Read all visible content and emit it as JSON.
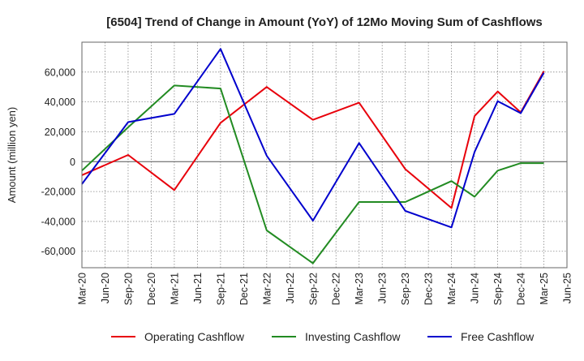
{
  "chart_data": {
    "type": "line",
    "title": "[6504]  Trend of Change in Amount (YoY) of 12Mo Moving Sum of Cashflows",
    "xlabel": "",
    "ylabel": "Amount (million yen)",
    "ylim": [
      -71000,
      80000
    ],
    "yticks": [
      60000,
      40000,
      20000,
      0,
      -20000,
      -40000,
      -60000
    ],
    "ytick_labels": [
      "60,000",
      "40,000",
      "20,000",
      "0",
      "-20,000",
      "-40,000",
      "-60,000"
    ],
    "categories": [
      "Mar-20",
      "Jun-20",
      "Sep-20",
      "Dec-20",
      "Mar-21",
      "Jun-21",
      "Sep-21",
      "Dec-21",
      "Mar-22",
      "Jun-22",
      "Sep-22",
      "Dec-22",
      "Mar-23",
      "Jun-23",
      "Sep-23",
      "Dec-23",
      "Mar-24",
      "Jun-24",
      "Sep-24",
      "Dec-24",
      "Mar-25",
      "Jun-25"
    ],
    "grid": true,
    "legend_position": "bottom",
    "series": [
      {
        "name": "Operating Cashflow",
        "color": "#e8000b",
        "points": [
          {
            "x": "Mar-20",
            "y": -9000
          },
          {
            "x": "Sep-20",
            "y": 4500
          },
          {
            "x": "Mar-21",
            "y": -19000
          },
          {
            "x": "Sep-21",
            "y": 26000
          },
          {
            "x": "Mar-22",
            "y": 50000
          },
          {
            "x": "Sep-22",
            "y": 28000
          },
          {
            "x": "Mar-23",
            "y": 39500
          },
          {
            "x": "Sep-23",
            "y": -5000
          },
          {
            "x": "Mar-24",
            "y": -31000
          },
          {
            "x": "Jun-24",
            "y": 30500
          },
          {
            "x": "Sep-24",
            "y": 47000
          },
          {
            "x": "Dec-24",
            "y": 33000
          },
          {
            "x": "Mar-25",
            "y": 60500
          }
        ]
      },
      {
        "name": "Investing Cashflow",
        "color": "#228b22",
        "points": [
          {
            "x": "Mar-20",
            "y": -6000
          },
          {
            "x": "Sep-20",
            "y": 23000
          },
          {
            "x": "Mar-21",
            "y": 51000
          },
          {
            "x": "Sep-21",
            "y": 49000
          },
          {
            "x": "Mar-22",
            "y": -46000
          },
          {
            "x": "Sep-22",
            "y": -68000
          },
          {
            "x": "Mar-23",
            "y": -27000
          },
          {
            "x": "Sep-23",
            "y": -27000
          },
          {
            "x": "Mar-24",
            "y": -13000
          },
          {
            "x": "Jun-24",
            "y": -23500
          },
          {
            "x": "Sep-24",
            "y": -6000
          },
          {
            "x": "Dec-24",
            "y": -1000
          },
          {
            "x": "Mar-25",
            "y": -1000
          }
        ]
      },
      {
        "name": "Free Cashflow",
        "color": "#0000cd",
        "points": [
          {
            "x": "Mar-20",
            "y": -15000
          },
          {
            "x": "Sep-20",
            "y": 26500
          },
          {
            "x": "Mar-21",
            "y": 32000
          },
          {
            "x": "Sep-21",
            "y": 75500
          },
          {
            "x": "Mar-22",
            "y": 4000
          },
          {
            "x": "Sep-22",
            "y": -39500
          },
          {
            "x": "Mar-23",
            "y": 12500
          },
          {
            "x": "Sep-23",
            "y": -33000
          },
          {
            "x": "Mar-24",
            "y": -44000
          },
          {
            "x": "Jun-24",
            "y": 6500
          },
          {
            "x": "Sep-24",
            "y": 40500
          },
          {
            "x": "Dec-24",
            "y": 32500
          },
          {
            "x": "Mar-25",
            "y": 59500
          }
        ]
      }
    ]
  }
}
